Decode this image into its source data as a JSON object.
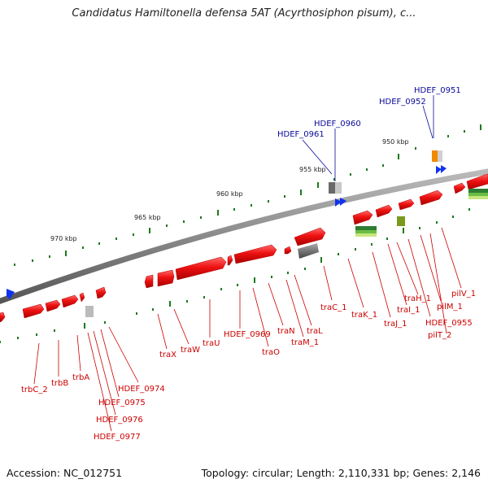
{
  "title": "Candidatus Hamiltonella defensa 5AT (Acyrthosiphon pisum), c...",
  "footer": {
    "accession": "Accession: NC_012751",
    "topology": "Topology: circular; Length: 2,110,331 bp; Genes: 2,146"
  },
  "scale_labels": [
    "950 kbp",
    "955 kbp",
    "960 kbp",
    "965 kbp",
    "970 kbp"
  ],
  "colors": {
    "forward_gene": "#ee1111",
    "pseudo_gene": "#9a9a9a",
    "rna_gene": "#1133ee",
    "backbone": "#8a8a8a",
    "tick": "#1c7a1c",
    "label_red": "#cc0000",
    "label_blue": "#0a0a99"
  },
  "gene_labels_above": [
    "HDEF_0951",
    "HDEF_0952",
    "HDEF_0960",
    "HDEF_0961"
  ],
  "gene_labels_below": [
    "traC_1",
    "traK_1",
    "traJ_1",
    "traI_1",
    "traH_1",
    "pilM_1",
    "pilV_1",
    "HDEF_0955",
    "pilT_2",
    "traX",
    "traW",
    "traU",
    "HDEF_0969",
    "traO",
    "traN",
    "traM_1",
    "traL",
    "trbC_2",
    "trbB",
    "trbA",
    "HDEF_0974",
    "HDEF_0975",
    "HDEF_0976",
    "HDEF_0977"
  ]
}
